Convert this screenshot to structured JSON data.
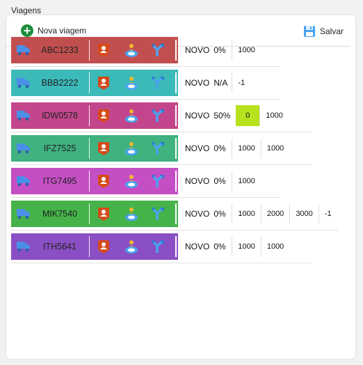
{
  "title": "Viagens",
  "toolbar": {
    "new_label": "Nova viagem",
    "save_label": "Salvar"
  },
  "colors": {
    "green": "#1e8e3e",
    "blue_icon": "#4aa3f0",
    "highlight": "#b7e21e"
  },
  "icons": [
    "truck-icon",
    "driver-icon",
    "person-zone-icon",
    "route-icon",
    "plus-icon",
    "save-icon"
  ],
  "trips": [
    {
      "plate": "ABC1233",
      "color": "#c24f4f",
      "status": "NOVO",
      "percent": "0%",
      "values": [
        "1000"
      ],
      "highlight": -1
    },
    {
      "plate": "BBB2222",
      "color": "#3cb9b9",
      "status": "NOVO",
      "percent": "N/A",
      "values": [
        "-1"
      ],
      "highlight": -1
    },
    {
      "plate": "IDW0578",
      "color": "#c3468c",
      "status": "NOVO",
      "percent": "50%",
      "values": [
        "0",
        "1000"
      ],
      "highlight": 0
    },
    {
      "plate": "IFZ7525",
      "color": "#3fb27f",
      "status": "NOVO",
      "percent": "0%",
      "values": [
        "1000",
        "1000"
      ],
      "highlight": -1
    },
    {
      "plate": "ITG7495",
      "color": "#c44fc4",
      "status": "NOVO",
      "percent": "0%",
      "values": [
        "1000"
      ],
      "highlight": -1
    },
    {
      "plate": "MIK7540",
      "color": "#45b34a",
      "status": "NOVO",
      "percent": "0%",
      "values": [
        "1000",
        "2000",
        "3000",
        "-1"
      ],
      "highlight": -1
    },
    {
      "plate": "ITH5641",
      "color": "#8a4fc4",
      "status": "NOVO",
      "percent": "0%",
      "values": [
        "1000",
        "1000"
      ],
      "highlight": -1
    }
  ]
}
